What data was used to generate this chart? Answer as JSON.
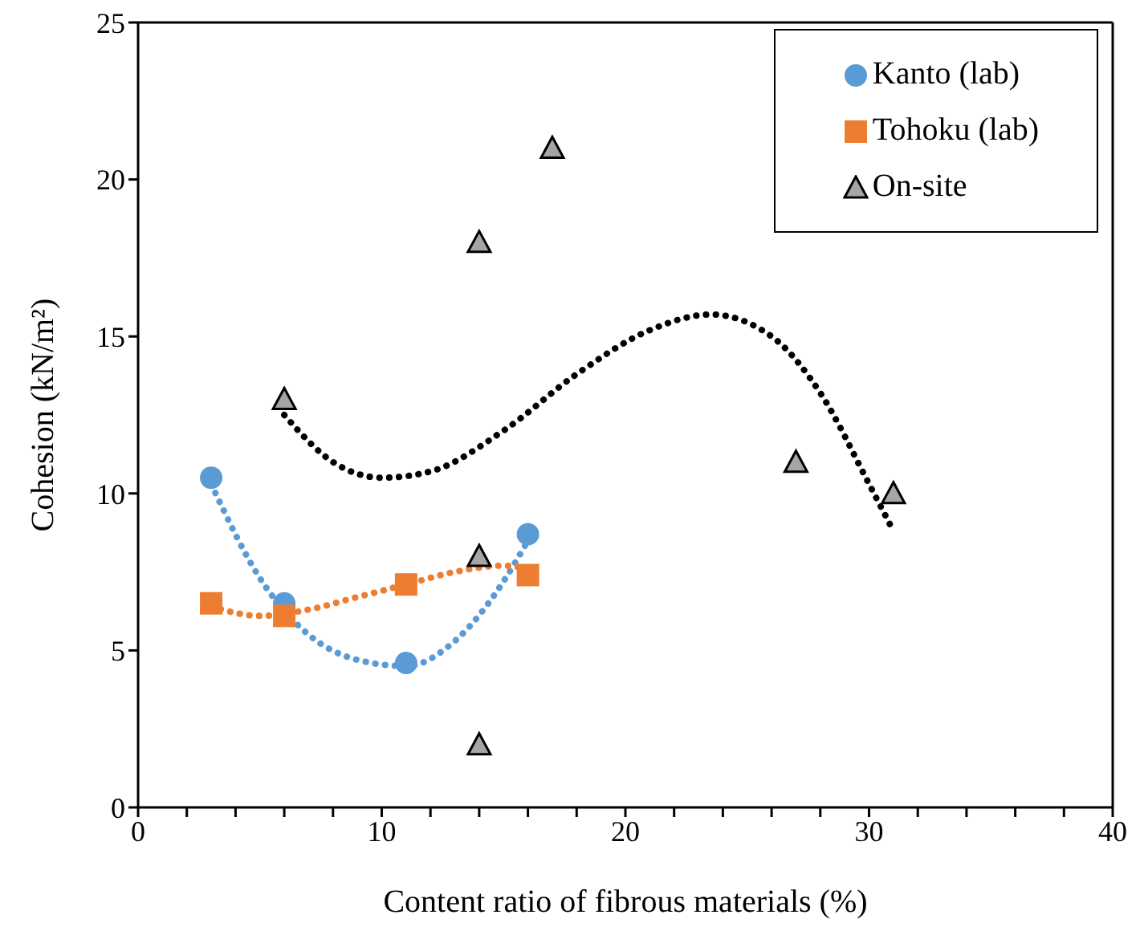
{
  "chart_data": {
    "type": "scatter",
    "xlabel": "Content ratio of fibrous materials (%)",
    "ylabel": "Cohesion (kN/m²)",
    "xlim": [
      0,
      40
    ],
    "xticks": [
      0,
      {
        "value": 2,
        "label": null
      },
      {
        "value": 4,
        "label": null
      },
      {
        "value": 6,
        "label": null
      },
      {
        "value": 8,
        "label": null
      },
      10,
      {
        "value": 12,
        "label": null
      },
      {
        "value": 14,
        "label": null
      },
      {
        "value": 16,
        "label": null
      },
      {
        "value": 18,
        "label": null
      },
      20,
      {
        "value": 22,
        "label": null
      },
      {
        "value": 24,
        "label": null
      },
      {
        "value": 26,
        "label": null
      },
      {
        "value": 28,
        "label": null
      },
      30,
      {
        "value": 32,
        "label": null
      },
      {
        "value": 34,
        "label": null
      },
      {
        "value": 36,
        "label": null
      },
      {
        "value": 38,
        "label": null
      },
      40
    ],
    "ylim": [
      0,
      25
    ],
    "yticks": [
      0,
      5,
      10,
      15,
      20,
      25
    ],
    "grid": false,
    "legend": "top right",
    "series": [
      {
        "name": "Kanto (lab)",
        "color": "#5b9bd5",
        "marker": "circle",
        "x": [
          3,
          6,
          11,
          16
        ],
        "values": [
          10.5,
          6.5,
          4.6,
          8.7
        ]
      },
      {
        "name": "Tohoku (lab)",
        "color": "#ed7d31",
        "marker": "square",
        "x": [
          3,
          6,
          11,
          16
        ],
        "values": [
          6.5,
          6.1,
          7.1,
          7.4
        ]
      },
      {
        "name": "On-site",
        "color": "#a5a5a5",
        "marker": "triangle",
        "x": [
          6,
          14,
          17,
          14,
          14,
          27,
          31
        ],
        "values": [
          13,
          18,
          21,
          8,
          2,
          11,
          10
        ]
      },
      {
        "type": "line",
        "color": "#5b9bd5",
        "line_style": "dotted",
        "x": [
          3,
          5,
          7,
          9,
          11,
          13,
          15,
          16
        ],
        "values": [
          10.3,
          7.3,
          5.5,
          4.7,
          4.5,
          5.3,
          7.2,
          8.5
        ]
      },
      {
        "type": "line",
        "color": "#ed7d31",
        "line_style": "dotted",
        "x": [
          3,
          5,
          7,
          9,
          11,
          13,
          15,
          16
        ],
        "values": [
          6.4,
          6.1,
          6.3,
          6.7,
          7.1,
          7.5,
          7.7,
          7.6
        ]
      },
      {
        "type": "line",
        "color": "#000000",
        "line_style": "dotted",
        "x": [
          6,
          8,
          10,
          12,
          15,
          18,
          21,
          23.5,
          26,
          28,
          30,
          31
        ],
        "values": [
          12.5,
          11,
          10.5,
          10.7,
          12,
          13.8,
          15.2,
          15.7,
          15,
          13.2,
          10.3,
          8.8
        ]
      }
    ]
  }
}
